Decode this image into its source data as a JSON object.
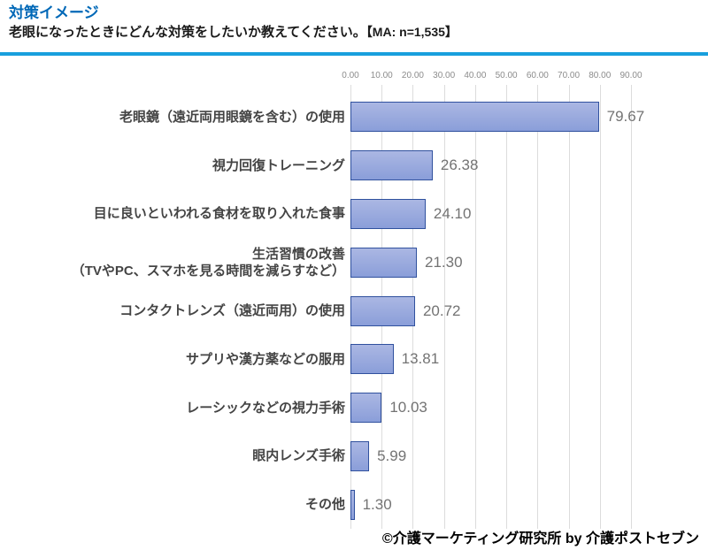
{
  "header": {
    "title": "対策イメージ",
    "question": "老眼になったときにどんな対策をしたいか教えてください。",
    "sample_note": "【MA: n=1,535】"
  },
  "chart_data": {
    "type": "bar",
    "orientation": "horizontal",
    "title": "対策イメージ",
    "categories": [
      "老眼鏡（遠近両用眼鏡を含む）の使用",
      "視力回復トレーニング",
      "目に良いといわれる食材を取り入れた食事",
      "生活習慣の改善\n（TVやPC、スマホを見る時間を減らすなど）",
      "コンタクトレンズ（遠近両用）の使用",
      "サプリや漢方薬などの服用",
      "レーシックなどの視力手術",
      "眼内レンズ手術",
      "その他"
    ],
    "values": [
      79.67,
      26.38,
      24.1,
      21.3,
      20.72,
      13.81,
      10.03,
      5.99,
      1.3
    ],
    "value_labels": [
      "79.67",
      "26.38",
      "24.10",
      "21.30",
      "20.72",
      "13.81",
      "10.03",
      "5.99",
      "1.30"
    ],
    "xlim": [
      0,
      90
    ],
    "axis": {
      "ticks": [
        "0.00",
        "10.00",
        "20.00",
        "30.00",
        "40.00",
        "50.00",
        "60.00",
        "70.00",
        "80.00",
        "90.00"
      ]
    },
    "grid": "vertical",
    "legend": "none"
  },
  "footer": {
    "copyright": "©介護マーケティング研究所 by 介護ポストセブン"
  },
  "colors": {
    "title": "#0068B7",
    "divider": "#189FDD",
    "bar_fill_top": "#ABB7E3",
    "bar_fill_bottom": "#8A9ED9",
    "bar_border": "#30519E",
    "value_label": "#737373",
    "category_label": "#444444",
    "axis_label": "#8C8C8C",
    "gridline": "#DCDCDC"
  }
}
